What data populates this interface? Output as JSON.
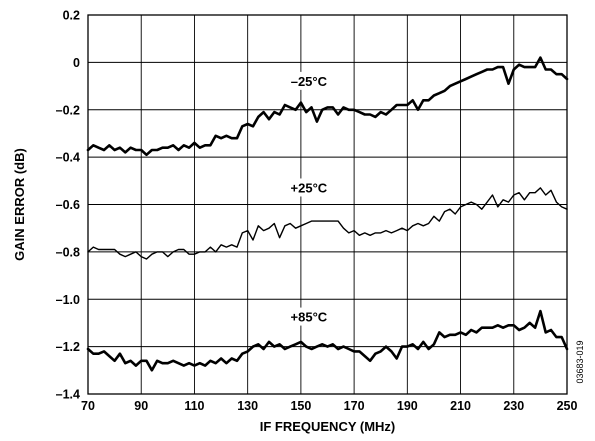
{
  "chart_data": {
    "type": "line",
    "xlabel": "IF FREQUENCY (MHz)",
    "ylabel": "GAIN ERROR (dB)",
    "xlim": [
      70,
      250
    ],
    "ylim": [
      -1.4,
      0.2
    ],
    "x_ticks": [
      70,
      90,
      110,
      130,
      150,
      170,
      190,
      210,
      230,
      250
    ],
    "x_tick_labels": [
      "70",
      "90",
      "110",
      "130",
      "150",
      "170",
      "190",
      "210",
      "230",
      "250"
    ],
    "y_ticks": [
      0.2,
      0,
      -0.2,
      -0.4,
      -0.6,
      -0.8,
      -1.0,
      -1.2,
      -1.4
    ],
    "y_tick_labels": [
      "0.2",
      "0",
      "–0.2",
      "–0.4",
      "–0.6",
      "–0.8",
      "–1.0",
      "–1.2",
      "–1.4"
    ],
    "grid": true,
    "figure_id": "03683-019",
    "series": [
      {
        "name": "–25°C",
        "thick": true,
        "x": [
          70,
          72,
          74,
          76,
          78,
          80,
          82,
          84,
          86,
          88,
          90,
          92,
          94,
          96,
          98,
          100,
          102,
          104,
          106,
          108,
          110,
          112,
          114,
          116,
          118,
          120,
          122,
          124,
          126,
          128,
          130,
          132,
          134,
          136,
          138,
          140,
          142,
          144,
          146,
          148,
          150,
          152,
          154,
          156,
          158,
          160,
          162,
          164,
          166,
          168,
          170,
          172,
          174,
          176,
          178,
          180,
          182,
          184,
          186,
          188,
          190,
          192,
          194,
          196,
          198,
          200,
          202,
          204,
          206,
          208,
          210,
          212,
          214,
          216,
          218,
          220,
          222,
          224,
          226,
          228,
          230,
          232,
          234,
          236,
          238,
          240,
          242,
          244,
          246,
          248,
          250
        ],
        "y": [
          -0.37,
          -0.35,
          -0.36,
          -0.37,
          -0.35,
          -0.37,
          -0.36,
          -0.38,
          -0.36,
          -0.37,
          -0.37,
          -0.39,
          -0.37,
          -0.37,
          -0.36,
          -0.36,
          -0.35,
          -0.37,
          -0.35,
          -0.36,
          -0.34,
          -0.36,
          -0.35,
          -0.35,
          -0.31,
          -0.32,
          -0.31,
          -0.32,
          -0.32,
          -0.27,
          -0.26,
          -0.27,
          -0.23,
          -0.21,
          -0.24,
          -0.21,
          -0.22,
          -0.18,
          -0.19,
          -0.2,
          -0.17,
          -0.21,
          -0.19,
          -0.25,
          -0.2,
          -0.19,
          -0.19,
          -0.22,
          -0.19,
          -0.2,
          -0.2,
          -0.21,
          -0.22,
          -0.22,
          -0.23,
          -0.21,
          -0.22,
          -0.2,
          -0.18,
          -0.18,
          -0.18,
          -0.16,
          -0.2,
          -0.16,
          -0.16,
          -0.14,
          -0.13,
          -0.12,
          -0.1,
          -0.09,
          -0.08,
          -0.07,
          -0.06,
          -0.05,
          -0.04,
          -0.03,
          -0.03,
          -0.02,
          -0.02,
          -0.09,
          -0.03,
          -0.01,
          -0.02,
          -0.02,
          -0.02,
          0.02,
          -0.03,
          -0.03,
          -0.05,
          -0.05,
          -0.07
        ]
      },
      {
        "name": "+25°C",
        "thick": false,
        "x": [
          70,
          72,
          74,
          76,
          78,
          80,
          82,
          84,
          86,
          88,
          90,
          92,
          94,
          96,
          98,
          100,
          102,
          104,
          106,
          108,
          110,
          112,
          114,
          116,
          118,
          120,
          122,
          124,
          126,
          128,
          130,
          132,
          134,
          136,
          138,
          140,
          142,
          144,
          146,
          148,
          150,
          152,
          154,
          156,
          158,
          160,
          162,
          164,
          166,
          168,
          170,
          172,
          174,
          176,
          178,
          180,
          182,
          184,
          186,
          188,
          190,
          192,
          194,
          196,
          198,
          200,
          202,
          204,
          206,
          208,
          210,
          212,
          214,
          216,
          218,
          220,
          222,
          224,
          226,
          228,
          230,
          232,
          234,
          236,
          238,
          240,
          242,
          244,
          246,
          248,
          250
        ],
        "y": [
          -0.8,
          -0.78,
          -0.79,
          -0.79,
          -0.79,
          -0.79,
          -0.81,
          -0.82,
          -0.81,
          -0.8,
          -0.82,
          -0.83,
          -0.81,
          -0.8,
          -0.8,
          -0.82,
          -0.8,
          -0.79,
          -0.79,
          -0.81,
          -0.81,
          -0.8,
          -0.8,
          -0.78,
          -0.8,
          -0.77,
          -0.78,
          -0.77,
          -0.78,
          -0.72,
          -0.71,
          -0.75,
          -0.69,
          -0.71,
          -0.7,
          -0.68,
          -0.74,
          -0.69,
          -0.68,
          -0.7,
          -0.69,
          -0.68,
          -0.67,
          -0.67,
          -0.67,
          -0.67,
          -0.67,
          -0.67,
          -0.7,
          -0.72,
          -0.71,
          -0.73,
          -0.72,
          -0.73,
          -0.72,
          -0.72,
          -0.71,
          -0.72,
          -0.71,
          -0.7,
          -0.71,
          -0.69,
          -0.68,
          -0.69,
          -0.68,
          -0.65,
          -0.67,
          -0.63,
          -0.62,
          -0.64,
          -0.61,
          -0.6,
          -0.59,
          -0.6,
          -0.62,
          -0.59,
          -0.56,
          -0.61,
          -0.58,
          -0.59,
          -0.56,
          -0.55,
          -0.58,
          -0.55,
          -0.55,
          -0.53,
          -0.56,
          -0.54,
          -0.59,
          -0.61,
          -0.62
        ]
      },
      {
        "name": "+85°C",
        "thick": true,
        "x": [
          70,
          72,
          74,
          76,
          78,
          80,
          82,
          84,
          86,
          88,
          90,
          92,
          94,
          96,
          98,
          100,
          102,
          104,
          106,
          108,
          110,
          112,
          114,
          116,
          118,
          120,
          122,
          124,
          126,
          128,
          130,
          132,
          134,
          136,
          138,
          140,
          142,
          144,
          146,
          148,
          150,
          152,
          154,
          156,
          158,
          160,
          162,
          164,
          166,
          168,
          170,
          172,
          174,
          176,
          178,
          180,
          182,
          184,
          186,
          188,
          190,
          192,
          194,
          196,
          198,
          200,
          202,
          204,
          206,
          208,
          210,
          212,
          214,
          216,
          218,
          220,
          222,
          224,
          226,
          228,
          230,
          232,
          234,
          236,
          238,
          240,
          242,
          244,
          246,
          248,
          250
        ],
        "y": [
          -1.21,
          -1.23,
          -1.23,
          -1.22,
          -1.24,
          -1.26,
          -1.23,
          -1.27,
          -1.26,
          -1.28,
          -1.26,
          -1.26,
          -1.3,
          -1.26,
          -1.27,
          -1.27,
          -1.26,
          -1.27,
          -1.28,
          -1.27,
          -1.28,
          -1.27,
          -1.28,
          -1.26,
          -1.27,
          -1.25,
          -1.27,
          -1.25,
          -1.26,
          -1.23,
          -1.22,
          -1.2,
          -1.19,
          -1.21,
          -1.18,
          -1.2,
          -1.19,
          -1.21,
          -1.2,
          -1.19,
          -1.18,
          -1.2,
          -1.21,
          -1.2,
          -1.19,
          -1.2,
          -1.19,
          -1.21,
          -1.2,
          -1.21,
          -1.22,
          -1.22,
          -1.24,
          -1.26,
          -1.23,
          -1.22,
          -1.2,
          -1.22,
          -1.25,
          -1.2,
          -1.2,
          -1.19,
          -1.21,
          -1.18,
          -1.21,
          -1.19,
          -1.14,
          -1.16,
          -1.15,
          -1.15,
          -1.14,
          -1.15,
          -1.13,
          -1.14,
          -1.12,
          -1.12,
          -1.12,
          -1.11,
          -1.12,
          -1.11,
          -1.11,
          -1.13,
          -1.12,
          -1.1,
          -1.12,
          -1.05,
          -1.14,
          -1.13,
          -1.16,
          -1.16,
          -1.21
        ]
      }
    ]
  }
}
